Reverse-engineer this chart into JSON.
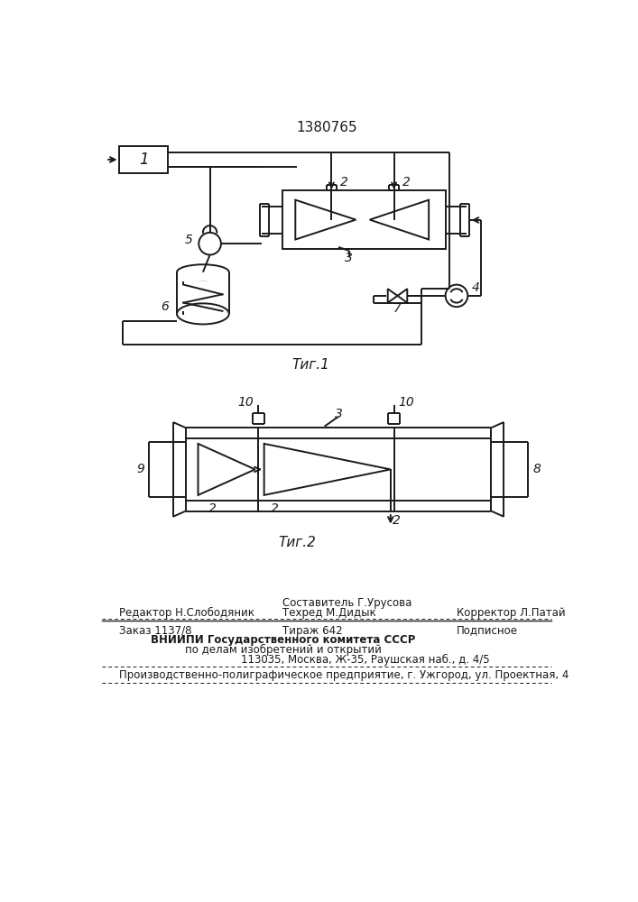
{
  "title": "1380765",
  "fig1_caption": "Τиг.1",
  "fig2_caption": "Τиг.2",
  "footer_comp": "Составитель Г.Урусова",
  "footer_tech": "Техред М.Дидык",
  "footer_editor": "Редактор Н.Слободяник",
  "footer_corr": "Корректор Л.Патай",
  "footer_order": "Заказ 1137/8",
  "footer_tiraj": "Тираж 642",
  "footer_podp": "Подписное",
  "footer_vniip": "ВНИИПИ Государственного комитета СССР",
  "footer_dela": "по делам изобретений и открытий",
  "footer_addr": "113035, Москва, Ж-35, Раушская наб., д. 4/5",
  "footer_prod": "Производственно-полиграфическое предприятие, г. Ужгород, ул. Проектная, 4",
  "bg_color": "#ffffff",
  "line_color": "#1a1a1a"
}
